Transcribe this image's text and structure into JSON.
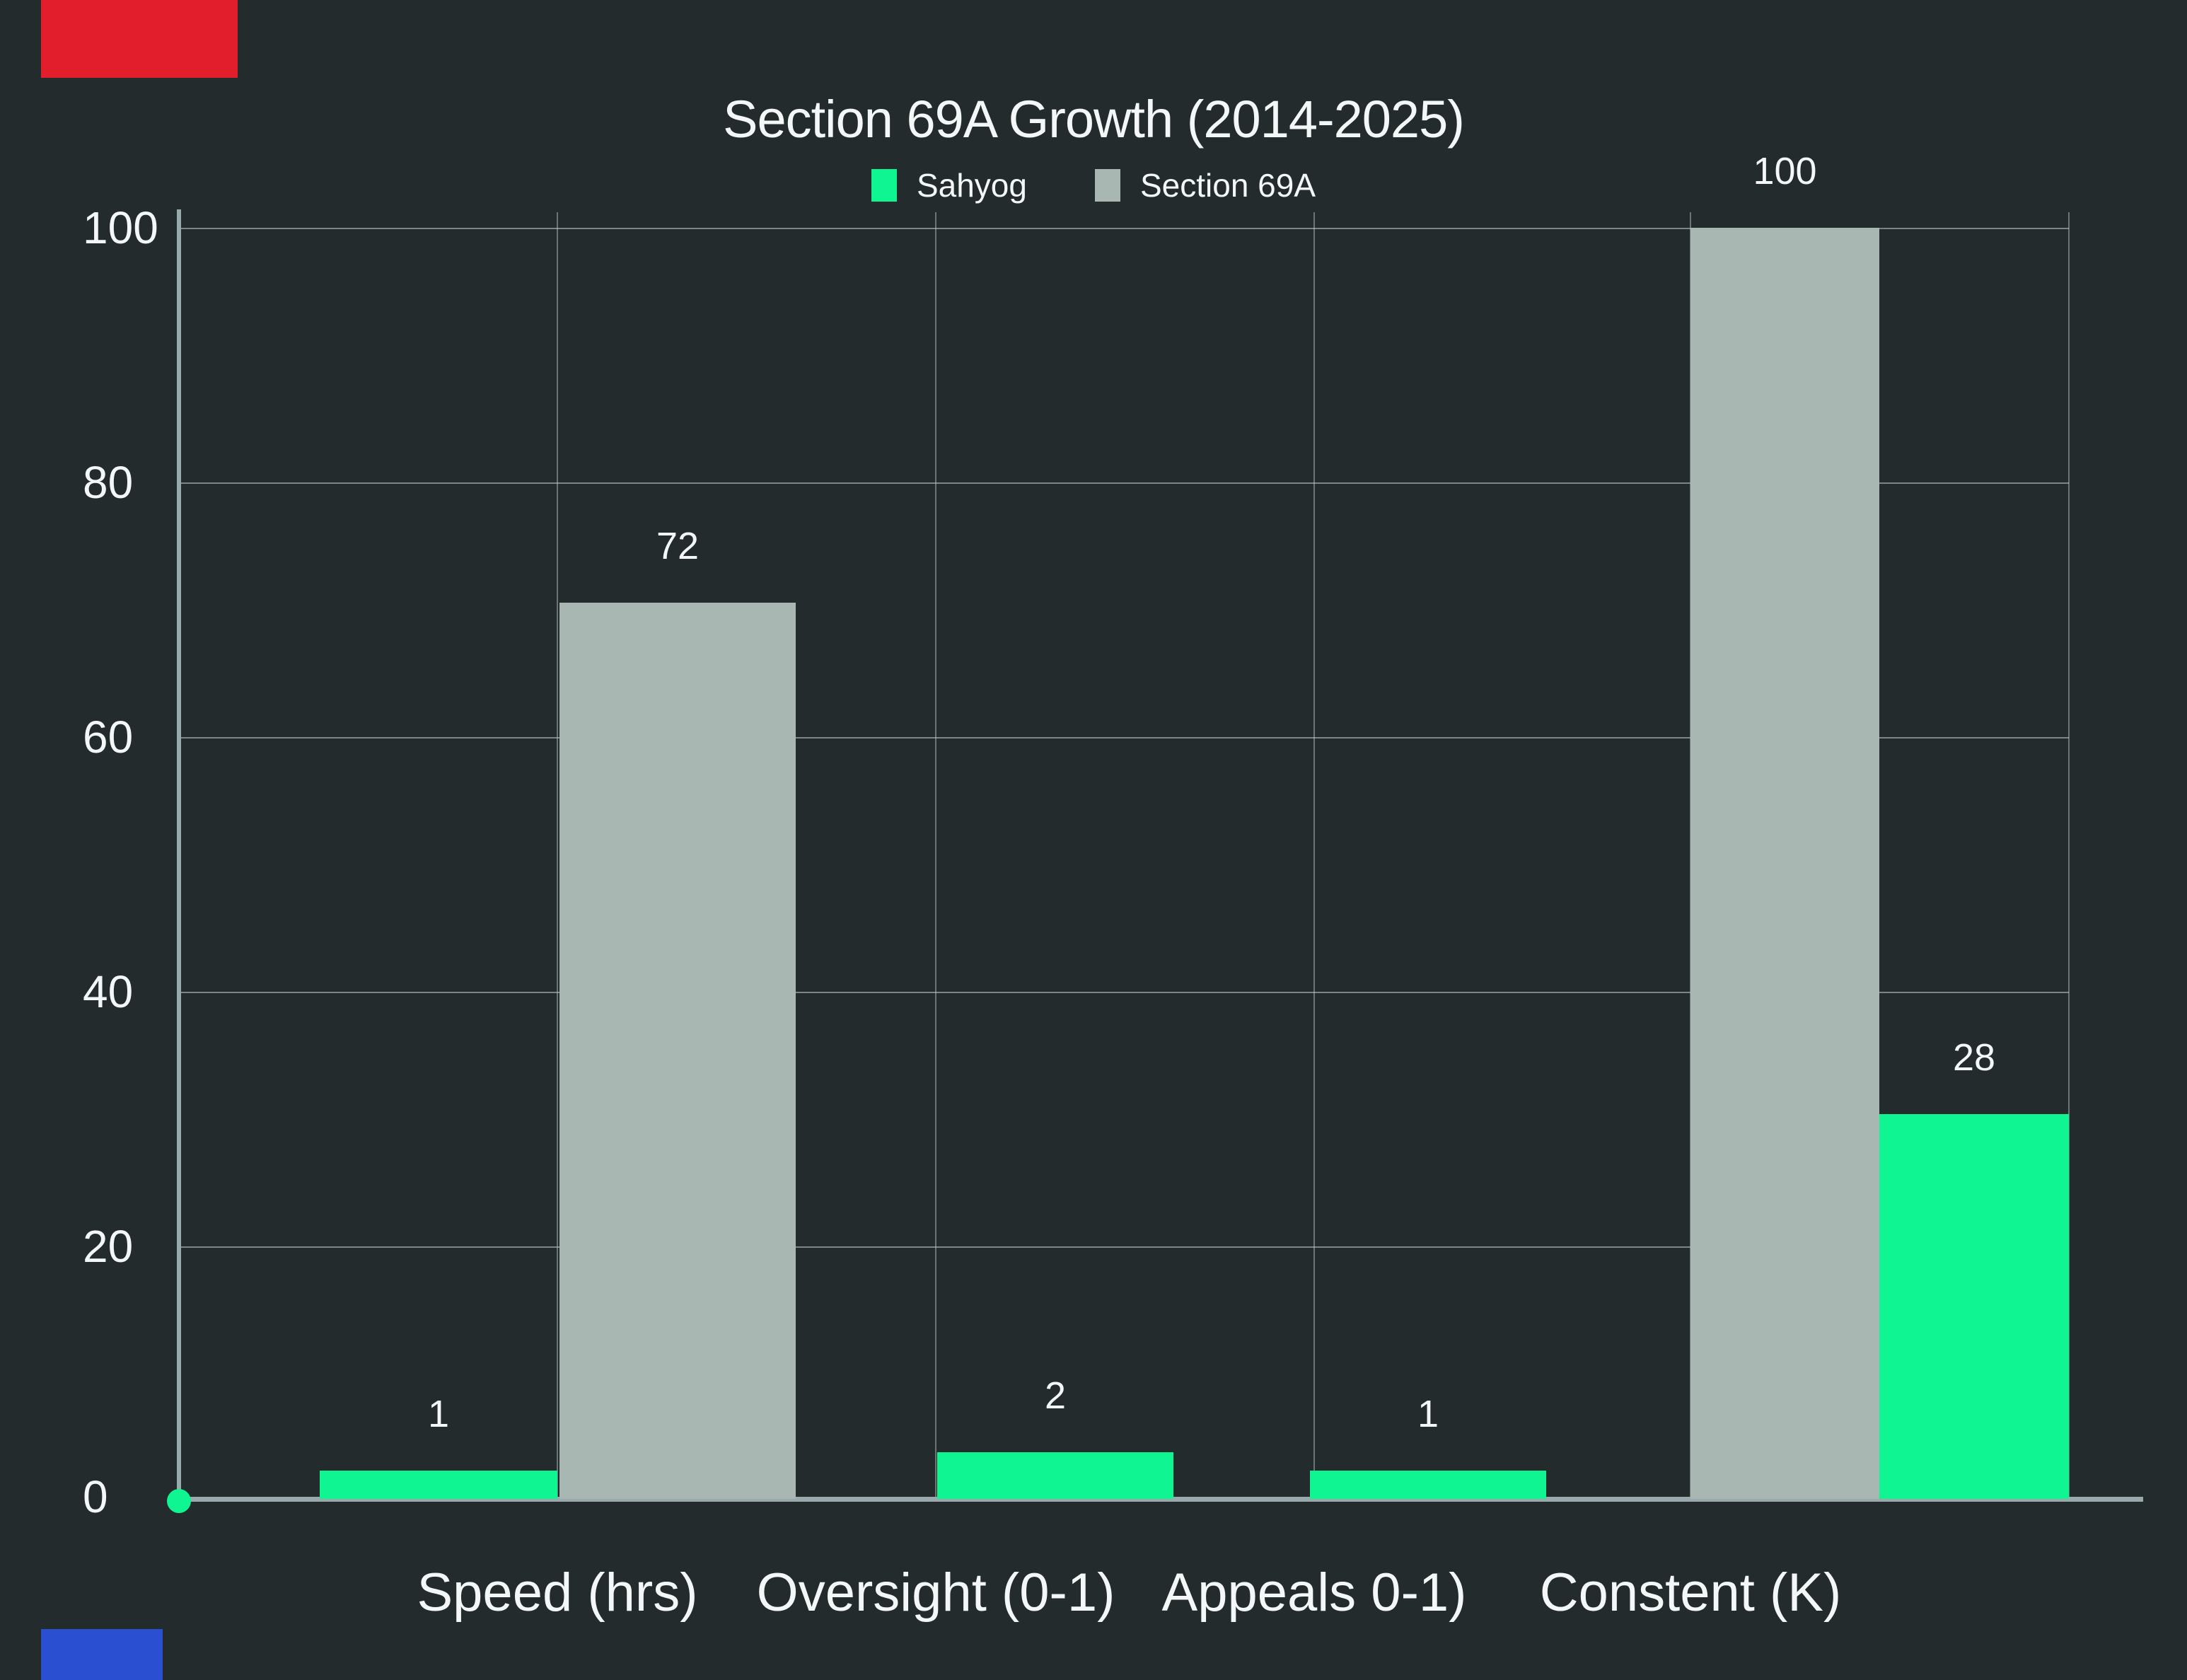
{
  "title": "Section 69A Growth (2014-2025)",
  "legend": {
    "items": [
      {
        "label": "Sahyog",
        "color": "#0ef592"
      },
      {
        "label": "Section 69A",
        "color": "#a9b7b2"
      }
    ]
  },
  "axis": {
    "y_ticks": [
      "100",
      "80",
      "60",
      "40",
      "20",
      "0"
    ],
    "categories": [
      "Speed (hrs)",
      "Oversight (0-1)",
      "Appeals 0-1)",
      "Constent (K)"
    ]
  },
  "colors": {
    "background": "#232b2d",
    "sahyog_green": "#0ef592",
    "section69a_gray": "#a9b7b2",
    "axis_line": "#9aa9ab",
    "text": "#f4f7f7",
    "red_marker": "#e21d2c",
    "blue_marker": "#2a4fd0"
  },
  "chart_data": {
    "type": "bar",
    "title": "Section 69A Growth (2014-2025)",
    "xlabel": "",
    "ylabel": "",
    "ylim": [
      0,
      100
    ],
    "y_ticks": [
      0,
      20,
      40,
      60,
      80,
      100
    ],
    "grid": true,
    "legend_position": "top",
    "categories": [
      "Speed (hrs)",
      "Oversight (0-1)",
      "Appeals 0-1)",
      "Constent (K)"
    ],
    "series": [
      {
        "name": "Sahyog",
        "color": "#0ef592",
        "values": [
          1,
          2,
          1,
          28
        ]
      },
      {
        "name": "Section 69A",
        "color": "#a9b7b2",
        "values": [
          72,
          null,
          null,
          100
        ]
      }
    ],
    "render_bars": [
      {
        "category": "speed",
        "series": "sahyog",
        "label": "1",
        "drawn_units": 2.2
      },
      {
        "category": "speed",
        "series": "section-69a",
        "label": "72",
        "drawn_units": 70.5
      },
      {
        "category": "oversight",
        "series": "sahyog",
        "label": "2",
        "drawn_units": 3.7
      },
      {
        "category": "appeals",
        "series": "sahyog",
        "label": "1",
        "drawn_units": 2.2
      },
      {
        "category": "constent",
        "series": "section-69a",
        "label": "100",
        "drawn_units": 100
      },
      {
        "category": "constent",
        "series": "sahyog",
        "label": "28",
        "drawn_units": 30.3
      }
    ]
  }
}
